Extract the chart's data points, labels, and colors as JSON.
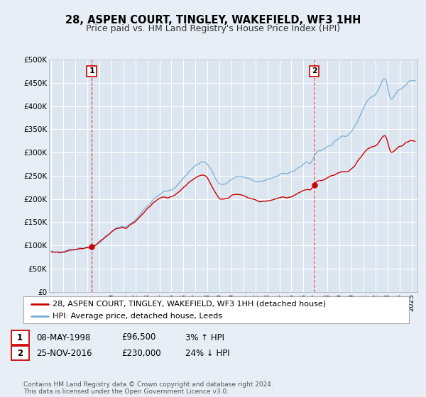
{
  "title": "28, ASPEN COURT, TINGLEY, WAKEFIELD, WF3 1HH",
  "subtitle": "Price paid vs. HM Land Registry's House Price Index (HPI)",
  "bg_color": "#e8eef5",
  "plot_bg_color": "#dce6f0",
  "grid_color": "#ffffff",
  "hpi_color": "#7aadd4",
  "price_color": "#cc0000",
  "marker_color": "#cc0000",
  "ylim": [
    0,
    500000
  ],
  "yticks": [
    0,
    50000,
    100000,
    150000,
    200000,
    250000,
    300000,
    350000,
    400000,
    450000,
    500000
  ],
  "ytick_labels": [
    "£0",
    "£50K",
    "£100K",
    "£150K",
    "£200K",
    "£250K",
    "£300K",
    "£350K",
    "£400K",
    "£450K",
    "£500K"
  ],
  "xlim_start": 1994.8,
  "xlim_end": 2025.5,
  "xticks": [
    1995,
    1996,
    1997,
    1998,
    1999,
    2000,
    2001,
    2002,
    2003,
    2004,
    2005,
    2006,
    2007,
    2008,
    2009,
    2010,
    2011,
    2012,
    2013,
    2014,
    2015,
    2016,
    2017,
    2018,
    2019,
    2020,
    2021,
    2022,
    2023,
    2024,
    2025
  ],
  "sale1_x": 1998.354,
  "sale1_y": 96500,
  "sale1_label": "1",
  "sale1_date": "08-MAY-1998",
  "sale1_price": "£96,500",
  "sale1_hpi": "3% ↑ HPI",
  "sale2_x": 2016.9,
  "sale2_y": 230000,
  "sale2_label": "2",
  "sale2_date": "25-NOV-2016",
  "sale2_price": "£230,000",
  "sale2_hpi": "24% ↓ HPI",
  "legend_line1": "28, ASPEN COURT, TINGLEY, WAKEFIELD, WF3 1HH (detached house)",
  "legend_line2": "HPI: Average price, detached house, Leeds",
  "footer": "Contains HM Land Registry data © Crown copyright and database right 2024.\nThis data is licensed under the Open Government Licence v3.0.",
  "title_fontsize": 10.5,
  "subtitle_fontsize": 9
}
